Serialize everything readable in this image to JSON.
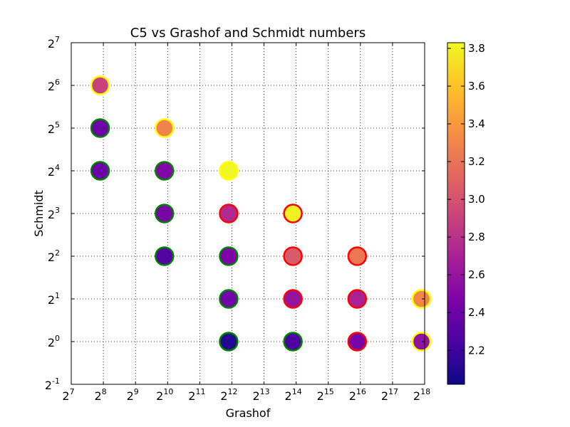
{
  "chart_data": {
    "type": "scatter",
    "title": "C5 vs Grashof and Schmidt numbers",
    "xlabel": "Grashof",
    "ylabel": "Schmidt",
    "x_scale": "log2",
    "y_scale": "log2",
    "x_exp_range": [
      7,
      18
    ],
    "y_exp_range": [
      -1,
      7
    ],
    "x_tick_exponents": [
      "7",
      "8",
      "9",
      "10",
      "11",
      "12",
      "13",
      "14",
      "15",
      "16",
      "17",
      "18"
    ],
    "y_tick_exponents": [
      "-1",
      "0",
      "1",
      "2",
      "3",
      "4",
      "5",
      "6",
      "7"
    ],
    "grid": true,
    "colorbar": {
      "colormap": "plasma",
      "range": [
        2.02,
        3.83
      ],
      "ticks": [
        "2.2",
        "2.4",
        "2.6",
        "2.8",
        "3.0",
        "3.2",
        "3.4",
        "3.6",
        "3.8"
      ]
    },
    "points": [
      {
        "x_exp": 7.9,
        "y_exp": 6,
        "value": 2.9,
        "edge": "#ffff00"
      },
      {
        "x_exp": 7.9,
        "y_exp": 5,
        "value": 2.4,
        "edge": "#008000"
      },
      {
        "x_exp": 7.9,
        "y_exp": 4,
        "value": 2.38,
        "edge": "#008000"
      },
      {
        "x_exp": 9.9,
        "y_exp": 5,
        "value": 3.28,
        "edge": "#ffff00"
      },
      {
        "x_exp": 9.9,
        "y_exp": 4,
        "value": 2.5,
        "edge": "#008000"
      },
      {
        "x_exp": 9.9,
        "y_exp": 3,
        "value": 2.45,
        "edge": "#008000"
      },
      {
        "x_exp": 9.9,
        "y_exp": 2,
        "value": 2.28,
        "edge": "#008000"
      },
      {
        "x_exp": 11.9,
        "y_exp": 4,
        "value": 3.82,
        "edge": "#ffff00"
      },
      {
        "x_exp": 11.9,
        "y_exp": 3,
        "value": 2.75,
        "edge": "#ff0000"
      },
      {
        "x_exp": 11.9,
        "y_exp": 2,
        "value": 2.48,
        "edge": "#008000"
      },
      {
        "x_exp": 11.9,
        "y_exp": 1,
        "value": 2.42,
        "edge": "#008000"
      },
      {
        "x_exp": 11.9,
        "y_exp": 0,
        "value": 2.1,
        "edge": "#008000"
      },
      {
        "x_exp": 13.9,
        "y_exp": 3,
        "value": 3.8,
        "edge": "#ff0000"
      },
      {
        "x_exp": 13.9,
        "y_exp": 2,
        "value": 3.05,
        "edge": "#ff0000"
      },
      {
        "x_exp": 13.9,
        "y_exp": 1,
        "value": 2.6,
        "edge": "#ff0000"
      },
      {
        "x_exp": 13.9,
        "y_exp": 0,
        "value": 2.25,
        "edge": "#008000"
      },
      {
        "x_exp": 15.9,
        "y_exp": 2,
        "value": 3.22,
        "edge": "#ff0000"
      },
      {
        "x_exp": 15.9,
        "y_exp": 1,
        "value": 2.7,
        "edge": "#ff0000"
      },
      {
        "x_exp": 15.9,
        "y_exp": 0,
        "value": 2.45,
        "edge": "#ff0000"
      },
      {
        "x_exp": 17.9,
        "y_exp": 1,
        "value": 3.3,
        "edge": "#ffff00"
      },
      {
        "x_exp": 17.9,
        "y_exp": 0,
        "value": 2.58,
        "edge": "#ffff00"
      }
    ]
  }
}
